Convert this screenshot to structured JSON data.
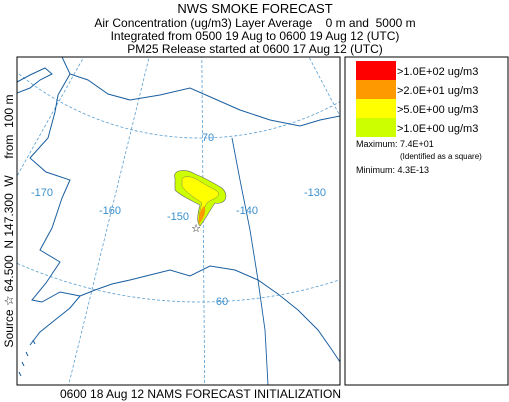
{
  "header": {
    "title": "NWS SMOKE FORECAST",
    "lines": [
      "Air Concentration (ug/m3) Layer Average    0 m and  5000 m",
      "Integrated from 0500 19 Aug to 0600 19 Aug 12 (UTC)",
      "PM25 Release started at 0600 17 Aug 12 (UTC)"
    ]
  },
  "source_label": "Source ☆ 64.500  N 147.300  W     from  100 m",
  "map": {
    "longitude_labels": [
      "-170",
      "-160",
      "-150",
      "-140",
      "-130"
    ],
    "latitude_labels": [
      "70",
      "60"
    ]
  },
  "legend": {
    "items": [
      {
        "label": ">1.0E+02 ug/m3",
        "color": "#ff0000"
      },
      {
        "label": ">2.0E+01 ug/m3",
        "color": "#ff9900"
      },
      {
        "label": ">5.0E+00 ug/m3",
        "color": "#ffff00"
      },
      {
        "label": ">1.0E+00 ug/m3",
        "color": "#ccff00"
      }
    ],
    "maximum": "Maximum: 7.4E+01",
    "maximum_note": "(Identified as a square)",
    "minimum": "Minimum: 4.3E-13"
  },
  "footer": "0600 18 Aug 12 NAMS FORECAST INITIALIZATION"
}
